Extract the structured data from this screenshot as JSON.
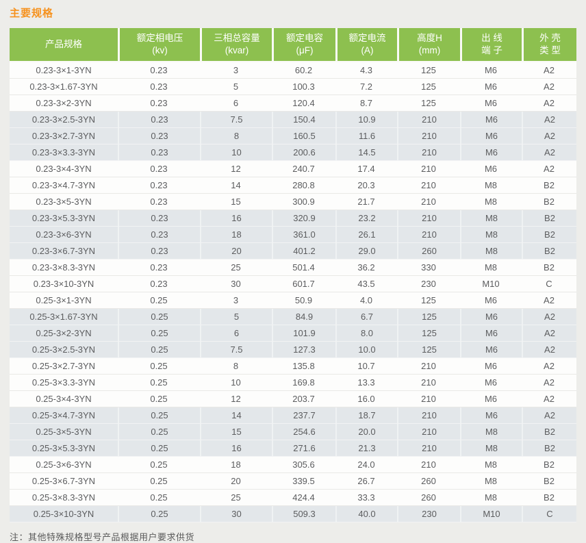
{
  "page": {
    "title": "主要规格",
    "note": "注：其他特殊规格型号产品根据用户要求供货",
    "colors": {
      "title_orange": "#F6921E",
      "header_green": "#8DC04F",
      "header_text": "#FFFFFF",
      "shaded_row": "#E3E7EA",
      "white_row": "#FDFDFC",
      "page_background": "#EDEDEA",
      "body_text": "#5B5C5E"
    }
  },
  "table": {
    "columns": [
      {
        "key": "product-spec",
        "label": "产品规格",
        "unit": ""
      },
      {
        "key": "rated-phase-voltage",
        "label": "额定相电压",
        "unit": "(kv)"
      },
      {
        "key": "three-phase-capacity",
        "label": "三相总容量",
        "unit": "(kvar)"
      },
      {
        "key": "rated-capacitance",
        "label": "额定电容",
        "unit": "(μF)"
      },
      {
        "key": "rated-current",
        "label": "额定电流",
        "unit": "(A)"
      },
      {
        "key": "height-h",
        "label": "高度H",
        "unit": "(mm)"
      },
      {
        "key": "outlet-terminal",
        "label": "出 线",
        "unit": "端 子"
      },
      {
        "key": "shell-type",
        "label": "外 壳",
        "unit": "类 型"
      }
    ],
    "rows": [
      {
        "shaded": false,
        "cells": [
          "0.23-3×1-3YN",
          "0.23",
          "3",
          "60.2",
          "4.3",
          "125",
          "M6",
          "A2"
        ]
      },
      {
        "shaded": false,
        "cells": [
          "0.23-3×1.67-3YN",
          "0.23",
          "5",
          "100.3",
          "7.2",
          "125",
          "M6",
          "A2"
        ]
      },
      {
        "shaded": false,
        "cells": [
          "0.23-3×2-3YN",
          "0.23",
          "6",
          "120.4",
          "8.7",
          "125",
          "M6",
          "A2"
        ]
      },
      {
        "shaded": true,
        "cells": [
          "0.23-3×2.5-3YN",
          "0.23",
          "7.5",
          "150.4",
          "10.9",
          "210",
          "M6",
          "A2"
        ]
      },
      {
        "shaded": true,
        "cells": [
          "0.23-3×2.7-3YN",
          "0.23",
          "8",
          "160.5",
          "11.6",
          "210",
          "M6",
          "A2"
        ]
      },
      {
        "shaded": true,
        "cells": [
          "0.23-3×3.3-3YN",
          "0.23",
          "10",
          "200.6",
          "14.5",
          "210",
          "M6",
          "A2"
        ]
      },
      {
        "shaded": false,
        "cells": [
          "0.23-3×4-3YN",
          "0.23",
          "12",
          "240.7",
          "17.4",
          "210",
          "M6",
          "A2"
        ]
      },
      {
        "shaded": false,
        "cells": [
          "0.23-3×4.7-3YN",
          "0.23",
          "14",
          "280.8",
          "20.3",
          "210",
          "M8",
          "B2"
        ]
      },
      {
        "shaded": false,
        "cells": [
          "0.23-3×5-3YN",
          "0.23",
          "15",
          "300.9",
          "21.7",
          "210",
          "M8",
          "B2"
        ]
      },
      {
        "shaded": true,
        "cells": [
          "0.23-3×5.3-3YN",
          "0.23",
          "16",
          "320.9",
          "23.2",
          "210",
          "M8",
          "B2"
        ]
      },
      {
        "shaded": true,
        "cells": [
          "0.23-3×6-3YN",
          "0.23",
          "18",
          "361.0",
          "26.1",
          "210",
          "M8",
          "B2"
        ]
      },
      {
        "shaded": true,
        "cells": [
          "0.23-3×6.7-3YN",
          "0.23",
          "20",
          "401.2",
          "29.0",
          "260",
          "M8",
          "B2"
        ]
      },
      {
        "shaded": false,
        "cells": [
          "0.23-3×8.3-3YN",
          "0.23",
          "25",
          "501.4",
          "36.2",
          "330",
          "M8",
          "B2"
        ]
      },
      {
        "shaded": false,
        "cells": [
          "0.23-3×10-3YN",
          "0.23",
          "30",
          "601.7",
          "43.5",
          "230",
          "M10",
          "C"
        ]
      },
      {
        "shaded": false,
        "cells": [
          "0.25-3×1-3YN",
          "0.25",
          "3",
          "50.9",
          "4.0",
          "125",
          "M6",
          "A2"
        ]
      },
      {
        "shaded": true,
        "cells": [
          "0.25-3×1.67-3YN",
          "0.25",
          "5",
          "84.9",
          "6.7",
          "125",
          "M6",
          "A2"
        ]
      },
      {
        "shaded": true,
        "cells": [
          "0.25-3×2-3YN",
          "0.25",
          "6",
          "101.9",
          "8.0",
          "125",
          "M6",
          "A2"
        ]
      },
      {
        "shaded": true,
        "cells": [
          "0.25-3×2.5-3YN",
          "0.25",
          "7.5",
          "127.3",
          "10.0",
          "125",
          "M6",
          "A2"
        ]
      },
      {
        "shaded": false,
        "cells": [
          "0.25-3×2.7-3YN",
          "0.25",
          "8",
          "135.8",
          "10.7",
          "210",
          "M6",
          "A2"
        ]
      },
      {
        "shaded": false,
        "cells": [
          "0.25-3×3.3-3YN",
          "0.25",
          "10",
          "169.8",
          "13.3",
          "210",
          "M6",
          "A2"
        ]
      },
      {
        "shaded": false,
        "cells": [
          "0.25-3×4-3YN",
          "0.25",
          "12",
          "203.7",
          "16.0",
          "210",
          "M6",
          "A2"
        ]
      },
      {
        "shaded": true,
        "cells": [
          "0.25-3×4.7-3YN",
          "0.25",
          "14",
          "237.7",
          "18.7",
          "210",
          "M6",
          "A2"
        ]
      },
      {
        "shaded": true,
        "cells": [
          "0.25-3×5-3YN",
          "0.25",
          "15",
          "254.6",
          "20.0",
          "210",
          "M8",
          "B2"
        ]
      },
      {
        "shaded": true,
        "cells": [
          "0.25-3×5.3-3YN",
          "0.25",
          "16",
          "271.6",
          "21.3",
          "210",
          "M8",
          "B2"
        ]
      },
      {
        "shaded": false,
        "cells": [
          "0.25-3×6-3YN",
          "0.25",
          "18",
          "305.6",
          "24.0",
          "210",
          "M8",
          "B2"
        ]
      },
      {
        "shaded": false,
        "cells": [
          "0.25-3×6.7-3YN",
          "0.25",
          "20",
          "339.5",
          "26.7",
          "260",
          "M8",
          "B2"
        ]
      },
      {
        "shaded": false,
        "cells": [
          "0.25-3×8.3-3YN",
          "0.25",
          "25",
          "424.4",
          "33.3",
          "260",
          "M8",
          "B2"
        ]
      },
      {
        "shaded": true,
        "cells": [
          "0.25-3×10-3YN",
          "0.25",
          "30",
          "509.3",
          "40.0",
          "230",
          "M10",
          "C"
        ]
      }
    ]
  }
}
